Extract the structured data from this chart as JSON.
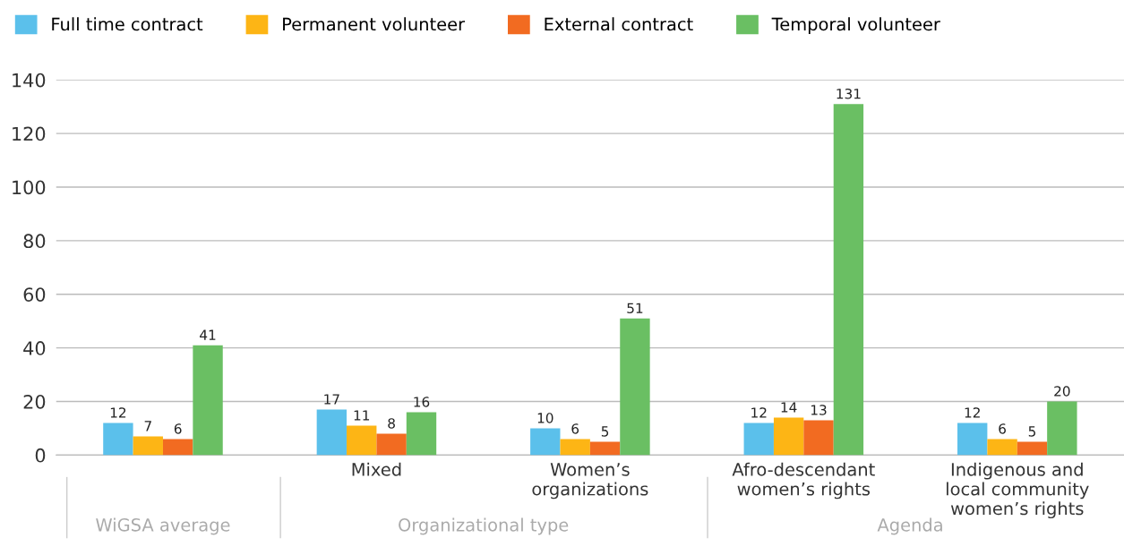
{
  "chart_data": {
    "type": "bar",
    "categories": [
      null,
      "Mixed",
      "Women’s\norganizations",
      "Afro-descendant\nwomen’s rights",
      "Indigenous and\nlocal community\nwomen’s rights"
    ],
    "series": [
      {
        "name": "Full time contract",
        "color": "#5bc0eb",
        "values": [
          12,
          17,
          10,
          12,
          12
        ]
      },
      {
        "name": "Permanent volunteer",
        "color": "#fdb515",
        "values": [
          7,
          11,
          6,
          14,
          6
        ]
      },
      {
        "name": "External contract",
        "color": "#f26b21",
        "values": [
          6,
          8,
          5,
          13,
          5
        ]
      },
      {
        "name": "Temporal volunteer",
        "color": "#6abf63",
        "values": [
          41,
          16,
          51,
          131,
          20
        ]
      }
    ],
    "ylim": [
      0,
      140
    ],
    "yticks": [
      0,
      20,
      40,
      60,
      80,
      100,
      120,
      140
    ],
    "grid": "y",
    "legend": "top left",
    "data_labels": true,
    "annotations": [
      "WiGSA average",
      "Organizational type",
      "Agenda"
    ]
  }
}
